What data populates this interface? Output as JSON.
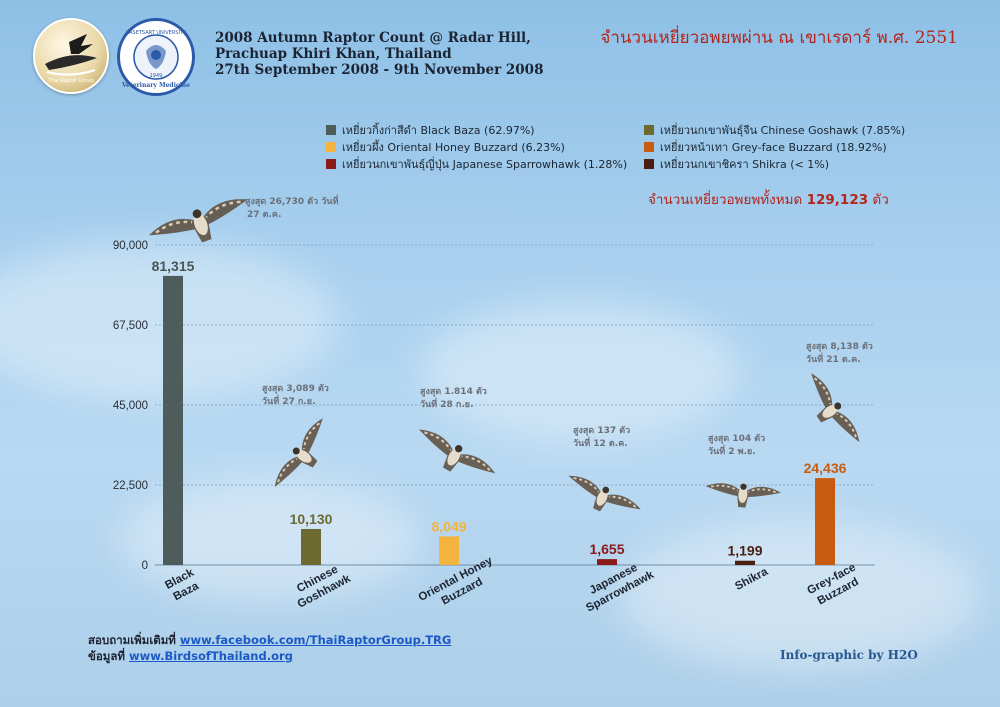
{
  "header": {
    "line1": "2008 Autumn Raptor Count @ Radar Hill,",
    "line2": "Prachuap Khiri Khan, Thailand",
    "line3": "27th September 2008 - 9th November 2008",
    "thai_title": "จำนวนเหยี่ยวอพยพผ่าน ณ เขาเรดาร์ พ.ศ. 2551",
    "logo_left_text": "Thai Raptor Group",
    "logo_right_text_top": "KASETSART UNIVERSITY",
    "logo_right_text_bottom": "Veterinary Medicine",
    "logo_right_year": "1949"
  },
  "legend": {
    "items": [
      {
        "label": "เหยี่ยวกิ้งก่าสีดำ Black Baza (62.97%)",
        "color": "#4f5c5c"
      },
      {
        "label": "เหยี่ยวนกเขาพันธุ์จีน Chinese Goshawk (7.85%)",
        "color": "#6c6a2f"
      },
      {
        "label": "เหยี่ยวผึ้ง Oriental Honey Buzzard (6.23%)",
        "color": "#f4b33e"
      },
      {
        "label": "เหยี่ยวหน้าเทา Grey-face Buzzard (18.92%)",
        "color": "#c75c10"
      },
      {
        "label": "เหยี่ยวนกเขาพันธุ์ญี่ปุ่น Japanese Sparrowhawk (1.28%)",
        "color": "#8b1a1a"
      },
      {
        "label": "เหยี่ยวนกเขาชิครา Shikra (< 1%)",
        "color": "#4a1f12"
      }
    ]
  },
  "total": {
    "prefix": "จำนวนเหยี่ยวอพยพทั้งหมด",
    "value": "129,123",
    "suffix": "ตัว"
  },
  "chart_data": {
    "type": "bar",
    "categories": [
      "Black Baza",
      "Chinese Goshhawk",
      "Oriental Honey Buzzard",
      "Japanese Sparrowhawk",
      "Shikra",
      "Grey-face Buzzard"
    ],
    "values": [
      81315,
      10130,
      8049,
      1655,
      1199,
      24436
    ],
    "value_labels": [
      "81,315",
      "10,130",
      "8,049",
      "1,655",
      "1,199",
      "24,436"
    ],
    "colors": [
      "#4f5c5c",
      "#6c6a2f",
      "#f4b33e",
      "#8b1a1a",
      "#4a1f12",
      "#c75c10"
    ],
    "label_colors": [
      "#4a5656",
      "#6c6a2f",
      "#f4b33e",
      "#8b1a1a",
      "#4a1f12",
      "#c75c10"
    ],
    "ylim": [
      0,
      90000
    ],
    "y_ticks": [
      0,
      22500,
      45000,
      67500,
      90000
    ],
    "y_tick_labels": [
      "0",
      "22,500",
      "45,000",
      "67,500",
      "90,000"
    ],
    "grid": true,
    "xlabel": "",
    "ylabel": "",
    "annotations": [
      {
        "line1": "สูงสุด 26,730 ตัว วันที่",
        "line2": "27 ต.ค."
      },
      {
        "line1": "สูงสุด 3,089 ตัว",
        "line2": "วันที่ 27 ก.ย."
      },
      {
        "line1": "สูงสุด 1.814 ตัว",
        "line2": "วันที่ 28 ก.ย."
      },
      {
        "line1": "สูงสุด 137 ตัว",
        "line2": "วันที่ 12 ต.ค."
      },
      {
        "line1": "สูงสุด 104 ตัว",
        "line2": "วันที่ 2 พ.ย."
      },
      {
        "line1": "สูงสุด 8,138 ตัว",
        "line2": "วันที่ 21 ต.ค."
      }
    ]
  },
  "footer": {
    "line1_prefix": "สอบถามเพิ่มเติมที่",
    "line1_link": "www.facebook.com/ThaiRaptorGroup.TRG",
    "line2_prefix": "ข้อมูลที่",
    "line2_link": "www.BirdsofThailand.org",
    "credit": "Info-graphic by H2O"
  }
}
